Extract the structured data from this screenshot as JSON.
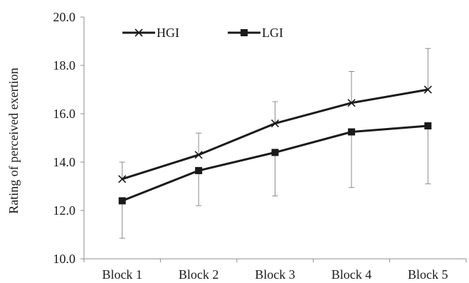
{
  "chart_data": {
    "type": "line",
    "categories": [
      "Block 1",
      "Block 2",
      "Block 3",
      "Block 4",
      "Block 5"
    ],
    "ylabel": "Rating of perceived exertion",
    "xlabel": "",
    "ylim": [
      10.0,
      20.0
    ],
    "yticks": [
      "10.0",
      "12.0",
      "14.0",
      "16.0",
      "18.0",
      "20.0"
    ],
    "grid": false,
    "legend_position": "top-left",
    "series": [
      {
        "name": "HGI",
        "marker": "x",
        "color": "#1a1a1a",
        "values": [
          13.3,
          14.3,
          15.6,
          16.45,
          17.0
        ],
        "error_upper": [
          14.0,
          15.2,
          16.5,
          17.75,
          18.7
        ],
        "error_lower": null
      },
      {
        "name": "LGI",
        "marker": "square",
        "color": "#1a1a1a",
        "values": [
          12.4,
          13.65,
          14.4,
          15.25,
          15.5
        ],
        "error_upper": null,
        "error_lower": [
          10.85,
          12.2,
          12.6,
          12.95,
          13.1
        ]
      }
    ],
    "error_bar_color": "#8c8c8c"
  }
}
